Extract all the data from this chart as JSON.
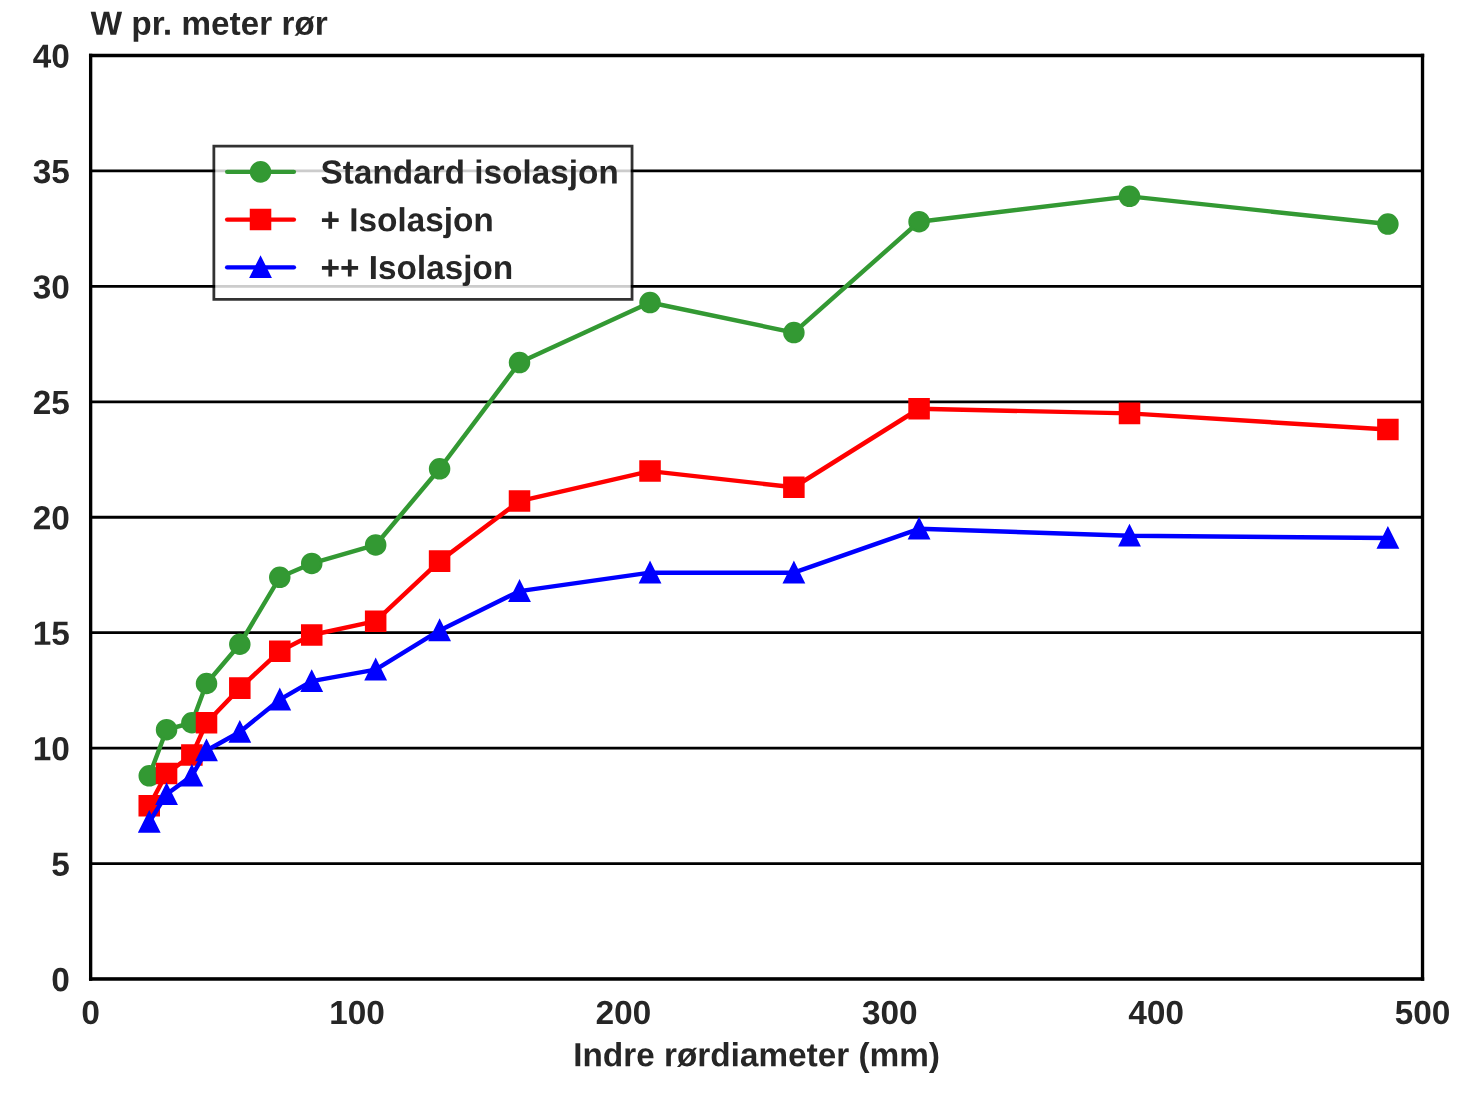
{
  "chart_data": {
    "type": "line",
    "ylabel": "W pr. meter rør",
    "xlabel": "Indre rørdiameter (mm)",
    "x": [
      22,
      28.5,
      38,
      43.5,
      56,
      71,
      83,
      107,
      131,
      161,
      210,
      264,
      311,
      390,
      487
    ],
    "series": [
      {
        "name": "Standard isolasjon",
        "color": "#339933",
        "marker": "circle",
        "values": [
          8.8,
          10.8,
          11.1,
          12.8,
          14.5,
          17.4,
          18.0,
          18.8,
          22.1,
          26.7,
          29.3,
          28.0,
          32.8,
          33.9,
          32.7
        ]
      },
      {
        "name": "+ Isolasjon",
        "color": "#ff0000",
        "marker": "square",
        "values": [
          7.5,
          8.9,
          9.7,
          11.1,
          12.6,
          14.2,
          14.9,
          15.5,
          18.1,
          20.7,
          22.0,
          21.3,
          24.7,
          24.5,
          23.8
        ]
      },
      {
        "name": "++ Isolasjon",
        "color": "#0000ff",
        "marker": "triangle",
        "values": [
          6.8,
          8.0,
          8.8,
          9.9,
          10.7,
          12.1,
          12.9,
          13.4,
          15.1,
          16.8,
          17.6,
          17.6,
          19.5,
          19.2,
          19.1
        ]
      }
    ],
    "xlim": [
      0,
      500
    ],
    "xticks": [
      0,
      100,
      200,
      300,
      400,
      500
    ],
    "ylim": [
      0,
      40
    ],
    "yticks": [
      0,
      5,
      10,
      15,
      20,
      25,
      30,
      35,
      40
    ],
    "grid": "y",
    "legend": "top left",
    "line_style": "solid"
  }
}
